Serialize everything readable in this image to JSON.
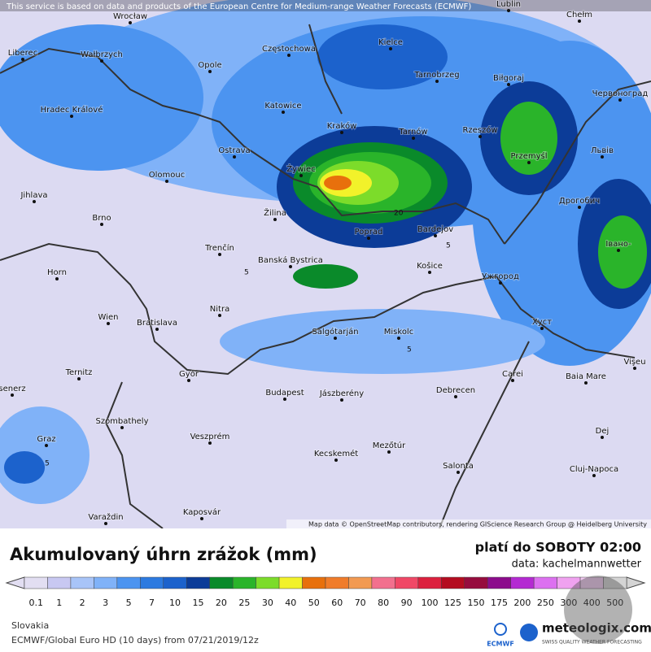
{
  "header": {
    "notice": "This service is based on data and products of the European Centre for Medium-range Weather Forecasts (ECMWF)",
    "attribution": "Map data © OpenStreetMap contributors, rendering GIScience Research Group @ Heidelberg University"
  },
  "map": {
    "cities": [
      "Wrocław",
      "Lublin",
      "Chełm",
      "Liberec",
      "Wałbrzych",
      "Opole",
      "Częstochowa",
      "Kielce",
      "Tarnobrzeg",
      "Biłgoraj",
      "Червоноград",
      "Hradec Králové",
      "Katowice",
      "Kraków",
      "Tarnów",
      "Rzeszów",
      "Ostrava",
      "Przemyśl",
      "Львів",
      "Żywiec",
      "Olomouc",
      "Jihlava",
      "Дрогобич",
      "Brno",
      "Žilina",
      "Bardejov",
      "Poprad",
      "Trenčín",
      "Івано-",
      "Banská Bystrica",
      "Košice",
      "Ужгород",
      "Horn",
      "Nitra",
      "Wien",
      "Bratislava",
      "Salgótarján",
      "Miskolc",
      "Хуст",
      "Vişeu",
      "Ternitz",
      "Győr",
      "Carei",
      "Baia Mare",
      "Budapest",
      "Jászberény",
      "Debrecen",
      "senerz",
      "Szombathely",
      "Veszprém",
      "Dej",
      "Graz",
      "Kecskemét",
      "Mezőtúr",
      "Cluj-Napoca",
      "Salonta",
      "Varaždin",
      "Kaposvár"
    ],
    "contour_labels": [
      "5",
      "20",
      "5",
      "5",
      "5"
    ]
  },
  "legend": {
    "title": "Akumulovaný úhrn zrážok (mm)",
    "valid": "platí do SOBOTY 02:00",
    "source": "data: kachelmannwetter",
    "scale": [
      0.1,
      1,
      2,
      3,
      5,
      7,
      10,
      15,
      20,
      25,
      30,
      40,
      50,
      60,
      70,
      80,
      90,
      100,
      125,
      150,
      175,
      200,
      250,
      300,
      400,
      500
    ],
    "colors": [
      "#e2def2",
      "#c8c8f2",
      "#a8c4f8",
      "#80b2f8",
      "#4c94f0",
      "#2c7ae0",
      "#1c62cc",
      "#0c3c98",
      "#0a8a2a",
      "#2ab42a",
      "#7cdc2a",
      "#f2f22a",
      "#e8700c",
      "#f07c2a",
      "#f29a52",
      "#f2708e",
      "#f04866",
      "#dc203e",
      "#b40c20",
      "#960c3e",
      "#8c0c8c",
      "#b42ad2",
      "#dc70f0",
      "#f0a2f0",
      "#f2caf2",
      "#d4d4d4"
    ]
  },
  "footer": {
    "region": "Slovakia",
    "model": "ECMWF/Global Euro HD (10 days) from 07/21/2019/12z",
    "ecmwf": "ECMWF",
    "brand": "meteologix.com",
    "tagline": "SWISS QUALITY WEATHER FORECASTING"
  }
}
